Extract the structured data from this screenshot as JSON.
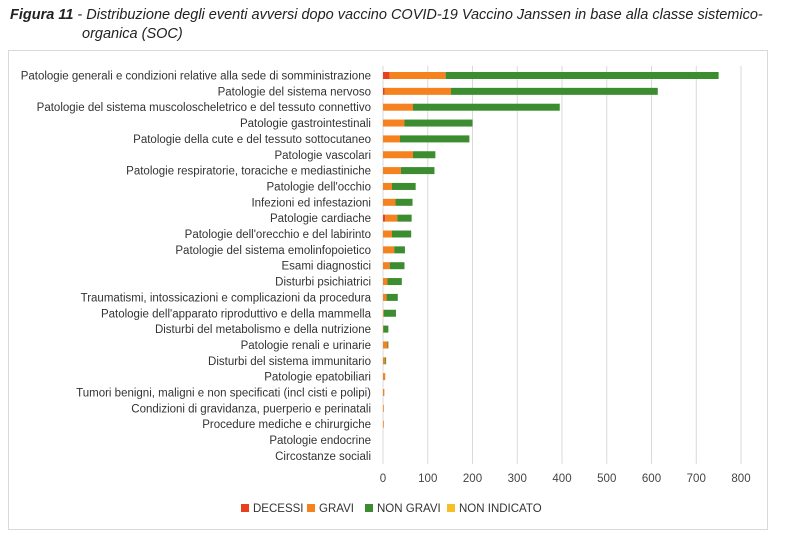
{
  "caption": {
    "figure_label": "Figura 11",
    "text_line1": "- Distribuzione degli eventi avversi dopo vaccino COVID-19 Vaccino Janssen in base alla classe sistemico-",
    "text_line2": "organica (SOC)"
  },
  "chart_data": {
    "type": "bar",
    "orientation": "horizontal",
    "stacked": true,
    "title": "",
    "xlabel": "",
    "ylabel": "",
    "xlim": [
      0,
      800
    ],
    "xticks": [
      0,
      100,
      200,
      300,
      400,
      500,
      600,
      700,
      800
    ],
    "grid": "vertical",
    "legend_position": "bottom",
    "categories": [
      "Patologie generali e condizioni relative alla sede di somministrazione",
      "Patologie del sistema nervoso",
      "Patologie del sistema muscoloscheletrico e del tessuto connettivo",
      "Patologie gastrointestinali",
      "Patologie della cute e del tessuto sottocutaneo",
      "Patologie vascolari",
      "Patologie respiratorie, toraciche e mediastiniche",
      "Patologie dell'occhio",
      "Infezioni ed infestazioni",
      "Patologie cardiache",
      "Patologie dell'orecchio e del labirinto",
      "Patologie del sistema emolinfopoietico",
      "Esami diagnostici",
      "Disturbi psichiatrici",
      "Traumatismi, intossicazioni e complicazioni da procedura",
      "Patologie dell'apparato riproduttivo e della mammella",
      "Disturbi del metabolismo e della nutrizione",
      "Patologie renali e urinarie",
      "Disturbi del sistema immunitario",
      "Patologie epatobiliari",
      "Tumori benigni, maligni e non specificati (incl cisti e polipi)",
      "Condizioni di gravidanza, puerperio e perinatali",
      "Procedure mediche e chirurgiche",
      "Patologie endocrine",
      "Circostanze sociali"
    ],
    "series": [
      {
        "name": "DECESSI",
        "color": "#e8401c",
        "values": [
          15,
          4,
          0,
          0,
          0,
          0,
          0,
          0,
          0,
          5,
          0,
          0,
          0,
          0,
          0,
          0,
          0,
          0,
          0,
          0,
          0,
          0,
          0,
          0,
          0
        ]
      },
      {
        "name": "GRAVI",
        "color": "#f5821f",
        "values": [
          125,
          148,
          67,
          48,
          38,
          67,
          40,
          20,
          28,
          27,
          20,
          25,
          15,
          10,
          8,
          2,
          1,
          10,
          5,
          5,
          3,
          1,
          1,
          0,
          0
        ]
      },
      {
        "name": "NON GRAVI",
        "color": "#3c8c30",
        "values": [
          610,
          462,
          328,
          152,
          155,
          50,
          75,
          53,
          38,
          32,
          43,
          24,
          33,
          32,
          25,
          27,
          11,
          2,
          2,
          0,
          0,
          0,
          0,
          0,
          0
        ]
      },
      {
        "name": "NON INDICATO",
        "color": "#f7bf27",
        "values": [
          0,
          0,
          0,
          0,
          0,
          0,
          0,
          0,
          0,
          0,
          0,
          0,
          0,
          0,
          0,
          0,
          0,
          0,
          0,
          0,
          0,
          0,
          0,
          0,
          0
        ]
      }
    ]
  }
}
